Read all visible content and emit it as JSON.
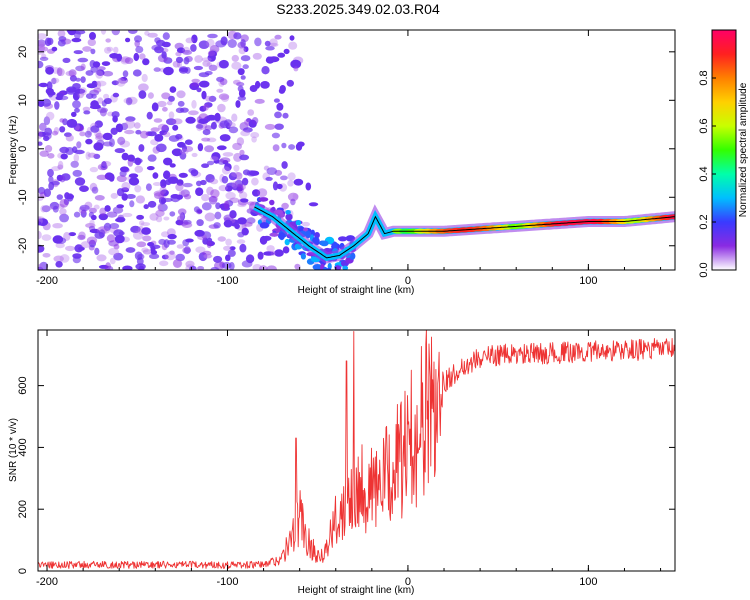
{
  "title": "S233.2025.349.02.03.R04",
  "chart_data": [
    {
      "type": "heatmap",
      "xlabel": "Height of straight line (km)",
      "ylabel": "Frequency (Hz)",
      "xlim": [
        -205,
        148
      ],
      "ylim": [
        -25,
        24.5
      ],
      "x_ticks": [
        -200,
        -100,
        0,
        100
      ],
      "y_ticks": [
        -20,
        -10,
        0,
        10,
        20
      ],
      "colorbar": {
        "label": "Normalized spectral amplitude",
        "range": [
          0,
          1
        ],
        "ticks": [
          0.0,
          0.2,
          0.4,
          0.6,
          0.8
        ],
        "tick_labels": [
          "0.0",
          "0.2",
          "0.4",
          "0.6",
          "0.8"
        ],
        "colors": [
          "#ffffff",
          "#8a2be2",
          "#3a3aff",
          "#00bfff",
          "#00ffaa",
          "#33ff00",
          "#c8ff00",
          "#ffd000",
          "#ff8000",
          "#ff2020",
          "#ff0066"
        ]
      },
      "trace": {
        "x": [
          -85,
          -75,
          -65,
          -55,
          -45,
          -38,
          -30,
          -22,
          -18,
          -13,
          -8,
          0,
          20,
          40,
          60,
          80,
          100,
          120,
          148
        ],
        "y": [
          -12,
          -14,
          -17,
          -20,
          -22.5,
          -22,
          -20,
          -17.5,
          -14,
          -17.5,
          -17,
          -17,
          -17,
          -16.5,
          -16,
          -15.5,
          -15,
          -15,
          -14
        ]
      },
      "noise_region_x": [
        -205,
        -75
      ],
      "noise_amplitude": 0.25
    },
    {
      "type": "line",
      "xlabel": "Height of straight line (km)",
      "ylabel": "SNR (10 * v/v)",
      "xlim": [
        -205,
        148
      ],
      "ylim": [
        0,
        780
      ],
      "x_ticks": [
        -200,
        -100,
        0,
        100
      ],
      "y_ticks": [
        0,
        200,
        400,
        600
      ],
      "color": "#ee3333",
      "series": {
        "name": "SNR",
        "envelope_x": [
          -205,
          -80,
          -70,
          -65,
          -60,
          -55,
          -50,
          -45,
          -40,
          -35,
          -30,
          -25,
          -20,
          -15,
          -10,
          -5,
          0,
          5,
          10,
          15,
          20,
          30,
          40,
          50,
          60,
          80,
          100,
          120,
          148
        ],
        "envelope_y": [
          20,
          20,
          40,
          100,
          180,
          90,
          50,
          70,
          160,
          220,
          300,
          280,
          260,
          280,
          320,
          360,
          400,
          460,
          510,
          560,
          610,
          660,
          690,
          700,
          700,
          705,
          710,
          715,
          720
        ],
        "peaks": [
          {
            "x": -30,
            "y": 775
          },
          {
            "x": -34,
            "y": 680
          },
          {
            "x": -62,
            "y": 430
          }
        ]
      }
    }
  ]
}
